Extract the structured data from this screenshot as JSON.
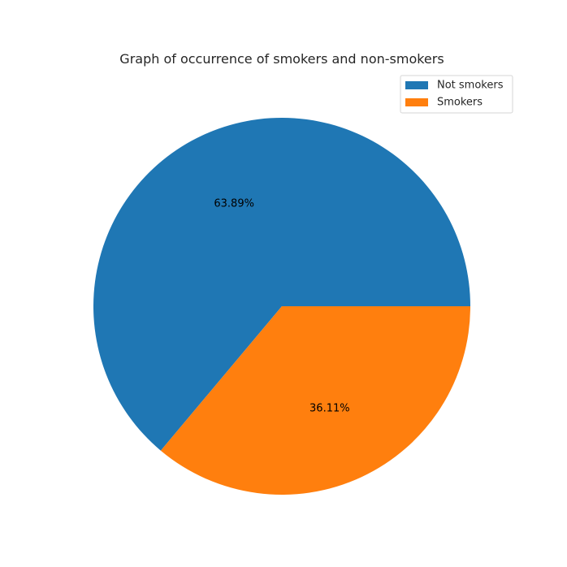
{
  "chart_data": {
    "type": "pie",
    "title": "Graph of occurrence of smokers and non-smokers",
    "categories": [
      "Not smokers",
      "Smokers"
    ],
    "values": [
      63.89,
      36.11
    ],
    "labels": [
      "63.89%",
      "36.11%"
    ],
    "colors": [
      "#1f77b4",
      "#ff7f0e"
    ],
    "start_angle_deg": 0,
    "direction": "counterclockwise",
    "legend": {
      "position": "upper right",
      "entries": [
        "Not smokers",
        "Smokers"
      ]
    }
  }
}
